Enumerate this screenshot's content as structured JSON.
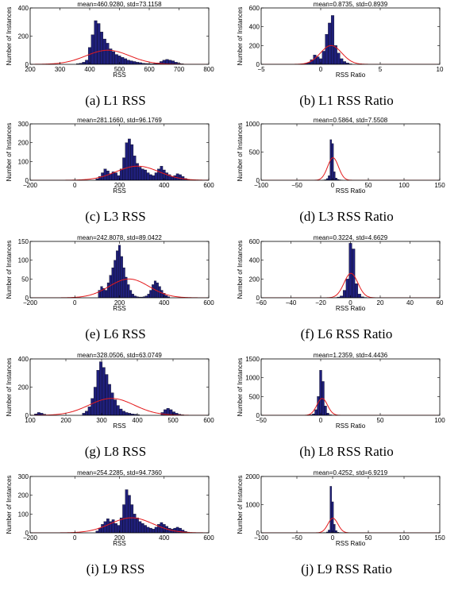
{
  "chart_data": [
    {
      "id": "L1-RSS",
      "type": "bar",
      "caption": "(a) L1 RSS",
      "title": "mean=460.9280, std=73.1158",
      "xlabel": "RSS",
      "ylabel": "Number of Instances",
      "xlim": [
        200,
        800
      ],
      "ylim": [
        0,
        400
      ],
      "xticks": [
        "200",
        "300",
        "400",
        "500",
        "600",
        "700",
        "800"
      ],
      "yticks": [
        "0",
        "200",
        "400"
      ],
      "bar_width": 10,
      "bins": [
        360,
        370,
        380,
        390,
        400,
        410,
        420,
        430,
        440,
        450,
        460,
        470,
        480,
        490,
        500,
        510,
        520,
        530,
        540,
        550,
        560,
        570,
        580,
        590,
        600,
        610,
        620,
        630,
        640,
        650,
        660,
        670,
        680,
        690,
        700,
        710,
        720
      ],
      "counts": [
        5,
        8,
        15,
        30,
        120,
        210,
        310,
        290,
        230,
        180,
        150,
        110,
        90,
        70,
        60,
        50,
        40,
        30,
        25,
        20,
        15,
        12,
        8,
        6,
        5,
        4,
        6,
        10,
        20,
        30,
        35,
        30,
        25,
        15,
        8,
        4,
        2
      ],
      "fit": {
        "mean": 460.928,
        "std": 73.1158,
        "peak": 100
      },
      "color": "#1f1f7a",
      "fit_color": "#e41a1c"
    },
    {
      "id": "L1-RSS-Ratio",
      "type": "bar",
      "caption": "(b) L1 RSS Ratio",
      "title": "mean=0.8735, std=0.8939",
      "xlabel": "RSS Ratio",
      "ylabel": "Number of Instances",
      "xlim": [
        -5,
        10
      ],
      "ylim": [
        0,
        600
      ],
      "xticks": [
        "−5",
        "0",
        "5",
        "10"
      ],
      "yticks": [
        "0",
        "200",
        "400",
        "600"
      ],
      "bar_width": 0.25,
      "bins": [
        -1.5,
        -1.25,
        -1,
        -0.75,
        -0.5,
        -0.25,
        0,
        0.25,
        0.5,
        0.75,
        1,
        1.25,
        1.5,
        1.75,
        2,
        2.25,
        2.5
      ],
      "counts": [
        5,
        10,
        20,
        50,
        100,
        80,
        60,
        140,
        320,
        440,
        520,
        200,
        120,
        60,
        30,
        15,
        5
      ],
      "fit": {
        "mean": 0.8735,
        "std": 0.8939,
        "peak": 200
      },
      "color": "#1f1f7a",
      "fit_color": "#e41a1c"
    },
    {
      "id": "L3-RSS",
      "type": "bar",
      "caption": "(c) L3 RSS",
      "title": "mean=281.1660, std=96.1769",
      "xlabel": "RSS",
      "ylabel": "Number of Instances",
      "xlim": [
        -200,
        600
      ],
      "ylim": [
        0,
        300
      ],
      "xticks": [
        "−200",
        "0",
        "200",
        "400",
        "600"
      ],
      "yticks": [
        "0",
        "100",
        "200",
        "300"
      ],
      "bar_width": 12,
      "bins": [
        100,
        112,
        124,
        136,
        148,
        160,
        172,
        184,
        196,
        208,
        220,
        232,
        244,
        256,
        268,
        280,
        292,
        304,
        316,
        328,
        340,
        352,
        364,
        376,
        388,
        400,
        412,
        424,
        436,
        448,
        460,
        472,
        484,
        496,
        508
      ],
      "counts": [
        8,
        20,
        40,
        60,
        50,
        35,
        45,
        40,
        25,
        60,
        120,
        200,
        220,
        190,
        130,
        90,
        70,
        60,
        55,
        40,
        30,
        25,
        40,
        60,
        75,
        55,
        40,
        30,
        20,
        25,
        35,
        30,
        20,
        10,
        5
      ],
      "fit": {
        "mean": 281.166,
        "std": 96.1769,
        "peak": 75
      },
      "color": "#1f1f7a",
      "fit_color": "#e41a1c"
    },
    {
      "id": "L3-RSS-Ratio",
      "type": "bar",
      "caption": "(d) L3 RSS Ratio",
      "title": "mean=0.5864, std=7.5508",
      "xlabel": "RSS Ratio",
      "ylabel": "Number of Instances",
      "xlim": [
        -100,
        150
      ],
      "ylim": [
        0,
        1000
      ],
      "xticks": [
        "−100",
        "−50",
        "0",
        "50",
        "100",
        "150"
      ],
      "yticks": [
        "0",
        "500",
        "1000"
      ],
      "bar_width": 2.5,
      "bins": [
        -12.5,
        -10,
        -7.5,
        -5,
        -2.5,
        0,
        2.5,
        5,
        7.5,
        10,
        12.5
      ],
      "counts": [
        5,
        10,
        30,
        80,
        720,
        650,
        150,
        40,
        15,
        8,
        3
      ],
      "fit": {
        "mean": 0.5864,
        "std": 7.5508,
        "peak": 400
      },
      "color": "#1f1f7a",
      "fit_color": "#e41a1c"
    },
    {
      "id": "L6-RSS",
      "type": "bar",
      "caption": "(e) L6 RSS",
      "title": "mean=242.8078, std=89.0422",
      "xlabel": "RSS",
      "ylabel": "Number of Instances",
      "xlim": [
        -200,
        600
      ],
      "ylim": [
        0,
        150
      ],
      "xticks": [
        "−200",
        "0",
        "200",
        "400",
        "600"
      ],
      "yticks": [
        "0",
        "50",
        "100",
        "150"
      ],
      "bar_width": 10,
      "bins": [
        110,
        120,
        130,
        140,
        150,
        160,
        170,
        180,
        190,
        200,
        210,
        220,
        230,
        240,
        250,
        260,
        270,
        280,
        290,
        300,
        310,
        320,
        330,
        340,
        350,
        360,
        370,
        380,
        390,
        400,
        410,
        420
      ],
      "counts": [
        20,
        30,
        25,
        20,
        40,
        60,
        80,
        100,
        125,
        140,
        110,
        80,
        55,
        35,
        20,
        10,
        5,
        3,
        2,
        2,
        3,
        5,
        10,
        20,
        35,
        45,
        40,
        30,
        20,
        12,
        6,
        3
      ],
      "fit": {
        "mean": 242.8078,
        "std": 89.0422,
        "peak": 50
      },
      "color": "#1f1f7a",
      "fit_color": "#e41a1c"
    },
    {
      "id": "L6-RSS-Ratio",
      "type": "bar",
      "caption": "(f) L6 RSS Ratio",
      "title": "mean=0.3224, std=4.6629",
      "xlabel": "RSS Ratio",
      "ylabel": "Number of Instances",
      "xlim": [
        -60,
        60
      ],
      "ylim": [
        0,
        600
      ],
      "xticks": [
        "−60",
        "−40",
        "−20",
        "0",
        "20",
        "40",
        "60"
      ],
      "yticks": [
        "0",
        "200",
        "400",
        "600"
      ],
      "bar_width": 2,
      "bins": [
        -10,
        -8,
        -6,
        -4,
        -2,
        0,
        2,
        4,
        6,
        8,
        10
      ],
      "counts": [
        3,
        8,
        20,
        80,
        200,
        580,
        520,
        150,
        40,
        10,
        4
      ],
      "fit": {
        "mean": 0.3224,
        "std": 4.6629,
        "peak": 260
      },
      "color": "#1f1f7a",
      "fit_color": "#e41a1c"
    },
    {
      "id": "L8-RSS",
      "type": "bar",
      "caption": "(g) L8 RSS",
      "title": "mean=328.0506, std=63.0749",
      "xlabel": "RSS",
      "ylabel": "Number of Instances",
      "xlim": [
        100,
        600
      ],
      "ylim": [
        0,
        400
      ],
      "xticks": [
        "100",
        "200",
        "300",
        "400",
        "500",
        "600"
      ],
      "yticks": [
        "0",
        "200",
        "400"
      ],
      "bar_width": 8,
      "bins": [
        116,
        124,
        132,
        140,
        250,
        258,
        266,
        274,
        282,
        290,
        298,
        306,
        314,
        322,
        330,
        338,
        346,
        354,
        362,
        370,
        378,
        386,
        394,
        402,
        470,
        478,
        486,
        494,
        502,
        510,
        518,
        526
      ],
      "counts": [
        10,
        20,
        15,
        8,
        15,
        30,
        60,
        120,
        200,
        320,
        380,
        340,
        290,
        220,
        160,
        110,
        70,
        45,
        30,
        20,
        15,
        10,
        8,
        5,
        20,
        40,
        50,
        40,
        25,
        15,
        8,
        4
      ],
      "fit": {
        "mean": 328.0506,
        "std": 63.0749,
        "peak": 120
      },
      "color": "#1f1f7a",
      "fit_color": "#e41a1c"
    },
    {
      "id": "L8-RSS-Ratio",
      "type": "bar",
      "caption": "(h) L8 RSS Ratio",
      "title": "mean=1.2359, std=4.4436",
      "xlabel": "RSS Ratio",
      "ylabel": "Number of Instances",
      "xlim": [
        -50,
        100
      ],
      "ylim": [
        0,
        1500
      ],
      "xticks": [
        "−50",
        "0",
        "50",
        "100"
      ],
      "yticks": [
        "0",
        "500",
        "1000",
        "1500"
      ],
      "bar_width": 2,
      "bins": [
        -10,
        -8,
        -6,
        -4,
        -2,
        0,
        2,
        4,
        6,
        8,
        10
      ],
      "counts": [
        5,
        15,
        40,
        150,
        500,
        1200,
        900,
        250,
        60,
        15,
        5
      ],
      "fit": {
        "mean": 1.2359,
        "std": 4.4436,
        "peak": 450
      },
      "color": "#1f1f7a",
      "fit_color": "#e41a1c"
    },
    {
      "id": "L9-RSS",
      "type": "bar",
      "caption": "(i) L9 RSS",
      "title": "mean=254.2285, std=94.7360",
      "xlabel": "RSS",
      "ylabel": "Number of Instances",
      "xlim": [
        -200,
        600
      ],
      "ylim": [
        0,
        300
      ],
      "xticks": [
        "−200",
        "0",
        "200",
        "400",
        "600"
      ],
      "yticks": [
        "0",
        "100",
        "200",
        "300"
      ],
      "bar_width": 12,
      "bins": [
        100,
        112,
        124,
        136,
        148,
        160,
        172,
        184,
        196,
        208,
        220,
        232,
        244,
        256,
        268,
        280,
        292,
        304,
        316,
        328,
        340,
        352,
        364,
        376,
        388,
        400,
        412,
        424,
        436,
        448,
        460,
        472,
        484,
        496,
        508
      ],
      "counts": [
        10,
        25,
        45,
        60,
        75,
        60,
        70,
        50,
        40,
        80,
        150,
        230,
        200,
        150,
        100,
        80,
        60,
        50,
        40,
        30,
        25,
        20,
        30,
        45,
        55,
        45,
        35,
        25,
        20,
        25,
        30,
        25,
        15,
        8,
        4
      ],
      "fit": {
        "mean": 254.2285,
        "std": 94.736,
        "peak": 80
      },
      "color": "#1f1f7a",
      "fit_color": "#e41a1c"
    },
    {
      "id": "L9-RSS-Ratio",
      "type": "bar",
      "caption": "(j) L9 RSS Ratio",
      "title": "mean=0.4252, std=6.9219",
      "xlabel": "RSS Ratio",
      "ylabel": "Number of Instances",
      "xlim": [
        -100,
        150
      ],
      "ylim": [
        0,
        2000
      ],
      "xticks": [
        "−100",
        "−50",
        "0",
        "50",
        "100",
        "150"
      ],
      "yticks": [
        "0",
        "1000",
        "2000"
      ],
      "bar_width": 2.5,
      "bins": [
        -12.5,
        -10,
        -7.5,
        -5,
        -2.5,
        0,
        2.5,
        5,
        7.5,
        10,
        12.5
      ],
      "counts": [
        5,
        10,
        30,
        100,
        1650,
        1100,
        300,
        80,
        20,
        8,
        3
      ],
      "fit": {
        "mean": 0.4252,
        "std": 6.9219,
        "peak": 520
      },
      "color": "#1f1f7a",
      "fit_color": "#e41a1c"
    }
  ]
}
